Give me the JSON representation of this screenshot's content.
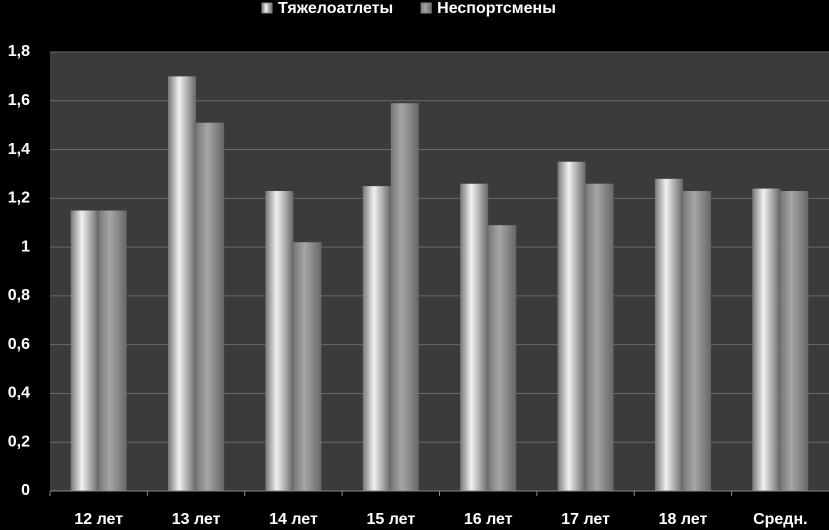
{
  "chart_data": {
    "type": "bar",
    "categories": [
      "12 лет",
      "13 лет",
      "14 лет",
      "15 лет",
      "16 лет",
      "17 лет",
      "18 лет",
      "Средн."
    ],
    "series": [
      {
        "name": "Тяжелоатлеты",
        "color": "#f2f2f2",
        "values": [
          1.15,
          1.7,
          1.23,
          1.25,
          1.26,
          1.35,
          1.28,
          1.24
        ]
      },
      {
        "name": "Неспортсмены",
        "color": "#a6a6a6",
        "values": [
          1.15,
          1.51,
          1.02,
          1.59,
          1.09,
          1.26,
          1.23,
          1.23
        ]
      }
    ],
    "ylim": [
      0,
      1.8
    ],
    "yticks": [
      0,
      {
        "value": 0.2,
        "label": "0,2"
      },
      {
        "value": 0.4,
        "label": "0,4"
      },
      {
        "value": 0.6,
        "label": "0,6"
      },
      {
        "value": 0.8,
        "label": "0,8"
      },
      1,
      {
        "value": 1.2,
        "label": "1,2"
      },
      {
        "value": 1.4,
        "label": "1,4"
      },
      {
        "value": 1.6,
        "label": "1,6"
      },
      {
        "value": 1.8,
        "label": "1,8"
      }
    ],
    "grid": true,
    "legend": "top"
  }
}
